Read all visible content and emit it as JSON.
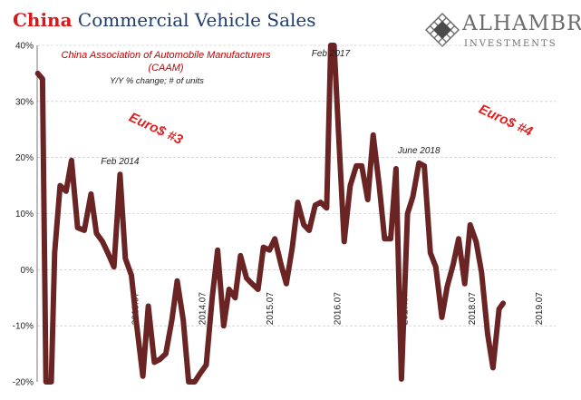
{
  "header": {
    "title_red": "China",
    "title_blue": "Commercial Vehicle Sales"
  },
  "logo": {
    "name": "ALHAMBRA",
    "sub": "INVESTMENTS",
    "icon": "diamond-lattice-icon"
  },
  "colors": {
    "line": "#6b2424",
    "title_red": "#d8191c",
    "title_blue": "#1f3d6e",
    "euro": "#e02020",
    "source": "#c00000",
    "grid": "#bdbdbd"
  },
  "chart_data": {
    "type": "line",
    "source_line1": "China Association of Automobile Manufacturers",
    "source_line2": "(CAAM)",
    "subtitle": "Y/Y % change; # of units",
    "ylim": [
      -20,
      40
    ],
    "yticks": [
      {
        "v": -20,
        "label": "-20%"
      },
      {
        "v": -10,
        "label": "-10%"
      },
      {
        "v": 0,
        "label": "0%"
      },
      {
        "v": 10,
        "label": "10%"
      },
      {
        "v": 20,
        "label": "20%"
      },
      {
        "v": 30,
        "label": "30%"
      },
      {
        "v": 40,
        "label": "40%"
      }
    ],
    "grid": true,
    "xrange": [
      2012.0,
      2019.7
    ],
    "xticks": [
      {
        "x": 2013.5,
        "label": "2013.07"
      },
      {
        "x": 2014.5,
        "label": "2014.07"
      },
      {
        "x": 2015.5,
        "label": "2015.07"
      },
      {
        "x": 2016.5,
        "label": "2016.07"
      },
      {
        "x": 2017.5,
        "label": "2017.07"
      },
      {
        "x": 2018.5,
        "label": "2018.07"
      },
      {
        "x": 2019.5,
        "label": "2019.07"
      }
    ],
    "series": [
      {
        "points": [
          [
            2012.01,
            35
          ],
          [
            2012.08,
            34
          ],
          [
            2012.13,
            -20
          ],
          [
            2012.21,
            -20
          ],
          [
            2012.26,
            3
          ],
          [
            2012.34,
            15
          ],
          [
            2012.43,
            14
          ],
          [
            2012.51,
            19.5
          ],
          [
            2012.6,
            7.5
          ],
          [
            2012.7,
            7
          ],
          [
            2012.8,
            13.5
          ],
          [
            2012.88,
            6.5
          ],
          [
            2012.97,
            5
          ],
          [
            2013.05,
            3
          ],
          [
            2013.14,
            0.5
          ],
          [
            2013.23,
            17
          ],
          [
            2013.31,
            2
          ],
          [
            2013.4,
            -1
          ],
          [
            2013.48,
            -10
          ],
          [
            2013.57,
            -19
          ],
          [
            2013.65,
            -6.5
          ],
          [
            2013.74,
            -16.5
          ],
          [
            2013.82,
            -16
          ],
          [
            2013.91,
            -15
          ],
          [
            2014.0,
            -9
          ],
          [
            2014.08,
            -2
          ],
          [
            2014.17,
            -9
          ],
          [
            2014.25,
            -20
          ],
          [
            2014.34,
            -20
          ],
          [
            2014.42,
            -18.5
          ],
          [
            2014.51,
            -17
          ],
          [
            2014.6,
            -5
          ],
          [
            2014.68,
            3.5
          ],
          [
            2014.77,
            -10
          ],
          [
            2014.85,
            -3.5
          ],
          [
            2014.94,
            -5
          ],
          [
            2015.02,
            2.5
          ],
          [
            2015.11,
            -1.5
          ],
          [
            2015.19,
            -2.5
          ],
          [
            2015.28,
            -3.5
          ],
          [
            2015.36,
            4
          ],
          [
            2015.45,
            3.5
          ],
          [
            2015.53,
            5.5
          ],
          [
            2015.62,
            1
          ],
          [
            2015.7,
            -2.5
          ],
          [
            2015.79,
            4
          ],
          [
            2015.87,
            12
          ],
          [
            2015.96,
            8
          ],
          [
            2016.04,
            7
          ],
          [
            2016.13,
            11.5
          ],
          [
            2016.21,
            12
          ],
          [
            2016.3,
            11
          ],
          [
            2016.36,
            40
          ],
          [
            2016.41,
            40
          ],
          [
            2016.48,
            23.5
          ],
          [
            2016.56,
            5
          ],
          [
            2016.65,
            15
          ],
          [
            2016.74,
            18.5
          ],
          [
            2016.82,
            18.5
          ],
          [
            2016.91,
            12.5
          ],
          [
            2016.99,
            24
          ],
          [
            2017.08,
            15
          ],
          [
            2017.16,
            5.5
          ],
          [
            2017.25,
            5.5
          ],
          [
            2017.33,
            18
          ],
          [
            2017.41,
            -19.5
          ],
          [
            2017.5,
            10
          ],
          [
            2017.58,
            13
          ],
          [
            2017.67,
            19
          ],
          [
            2017.75,
            18.5
          ],
          [
            2017.84,
            3
          ],
          [
            2017.92,
            0.5
          ],
          [
            2018.01,
            -8.5
          ],
          [
            2018.09,
            -3
          ],
          [
            2018.18,
            1
          ],
          [
            2018.26,
            5.5
          ],
          [
            2018.35,
            -2.5
          ],
          [
            2018.43,
            8
          ],
          [
            2018.52,
            5
          ],
          [
            2018.6,
            -0.5
          ],
          [
            2018.69,
            -11.5
          ],
          [
            2018.77,
            -17.5
          ],
          [
            2018.86,
            -7
          ],
          [
            2018.92,
            -6
          ]
        ]
      }
    ],
    "annotations": [
      {
        "text": "Feb 2014",
        "x": 2013.23,
        "y": 17
      },
      {
        "text": "Feb 2017",
        "x": 2016.36,
        "y": 40
      },
      {
        "text": "June 2018",
        "x": 2017.67,
        "y": 19
      }
    ],
    "callouts": [
      "Euro$ #3",
      "Euro$ #4"
    ]
  }
}
